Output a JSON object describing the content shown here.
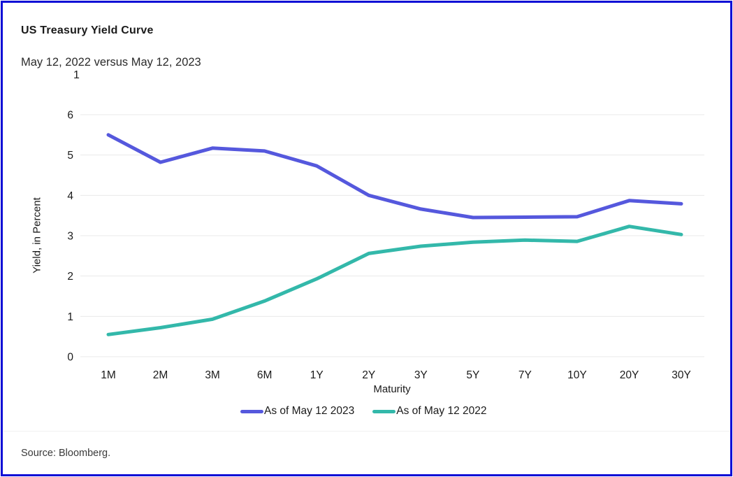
{
  "header": {
    "title": "US Treasury Yield Curve",
    "subtitle": "May 12, 2022 versus May 12, 2023",
    "footnote_marker": "1"
  },
  "footer": {
    "source": "Source: Bloomberg."
  },
  "colors": {
    "frame_border": "#0f0fd6",
    "gridline": "#e8e8e8",
    "axis_text": "#1a1a1a",
    "series_2023": "#5558dd",
    "series_2022": "#33b8aa"
  },
  "chart_data": {
    "type": "line",
    "title": "US Treasury Yield Curve",
    "subtitle": "May 12, 2022 versus May 12, 2023",
    "xlabel": "Maturity",
    "ylabel": "Yield, in Percent",
    "categories": [
      "1M",
      "2M",
      "3M",
      "6M",
      "1Y",
      "2Y",
      "3Y",
      "5Y",
      "7Y",
      "10Y",
      "20Y",
      "30Y"
    ],
    "y_ticks": [
      0,
      1,
      2,
      3,
      4,
      5,
      6
    ],
    "ylim": [
      0,
      6
    ],
    "grid": "horizontal gridlines only",
    "legend_position": "bottom center",
    "series": [
      {
        "name": "As of May 12 2023",
        "color": "#5558dd",
        "values": [
          5.5,
          4.82,
          5.17,
          5.1,
          4.73,
          4.0,
          3.66,
          3.45,
          3.46,
          3.47,
          3.87,
          3.79
        ]
      },
      {
        "name": "As of May 12 2022",
        "color": "#33b8aa",
        "values": [
          0.55,
          0.72,
          0.93,
          1.38,
          1.93,
          2.56,
          2.74,
          2.84,
          2.89,
          2.86,
          3.23,
          3.03
        ]
      }
    ]
  }
}
